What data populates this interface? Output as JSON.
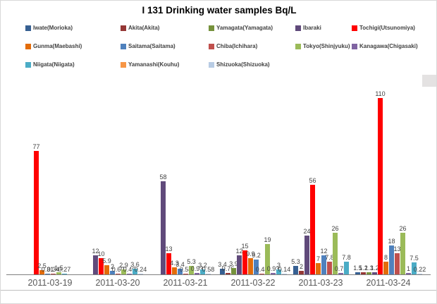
{
  "chart_data": {
    "type": "bar",
    "title": "I 131 Drinking water samples Bq/L",
    "xlabel": "",
    "ylabel": "",
    "ylim": [
      0,
      110
    ],
    "grid": false,
    "legend_position": "top-left, three rows, five columns",
    "value_labels": "shown above each bar",
    "categories": [
      "2011-03-19",
      "2011-03-20",
      "2011-03-21",
      "2011-03-22",
      "2011-03-23",
      "2011-03-24"
    ],
    "series": [
      {
        "name": "Iwate(Morioka)",
        "color": "#376092",
        "values": [
          null,
          null,
          null,
          3.4,
          5.3,
          1.5
        ],
        "labels": [
          null,
          null,
          null,
          "3.4",
          "5.3",
          "1.5"
        ]
      },
      {
        "name": "Akita(Akita)",
        "color": "#953735",
        "values": [
          null,
          null,
          null,
          0.76,
          2,
          1.2
        ],
        "labels": [
          null,
          null,
          null,
          "0.76",
          "2",
          "1.2"
        ]
      },
      {
        "name": "Yamagata(Yamagata)",
        "color": "#76923C",
        "values": [
          null,
          null,
          null,
          3.9,
          null,
          1.3
        ],
        "labels": [
          null,
          null,
          null,
          "3.9",
          null,
          "1.3"
        ]
      },
      {
        "name": "Ibaraki",
        "color": "#604A7B",
        "values": [
          null,
          12,
          58,
          12,
          24,
          1.2
        ],
        "labels": [
          null,
          "12",
          "58",
          "12",
          "24",
          "1.2"
        ]
      },
      {
        "name": "Tochigi(Utsunomiya)",
        "color": "#FF0000",
        "values": [
          77,
          10,
          13,
          15,
          56,
          110
        ],
        "labels": [
          "77",
          "10",
          "13",
          "15",
          "56",
          "110"
        ]
      },
      {
        "name": "Gunma(Maebashi)",
        "color": "#E36C09",
        "values": [
          2.5,
          5.9,
          4.3,
          9.9,
          7,
          8
        ],
        "labels": [
          "2.5",
          "5.9",
          "4.3",
          "9.9",
          "7",
          "8"
        ]
      },
      {
        "name": "Saitama(Saitama)",
        "color": "#4F81BD",
        "values": [
          0.31,
          2,
          3.4,
          9.2,
          12,
          18
        ],
        "labels": [
          "0.31",
          "2",
          "3.4",
          "9.2",
          "12",
          "18"
        ]
      },
      {
        "name": "Chiba(Ichihara)",
        "color": "#C0504D",
        "values": [
          0.34,
          0.6,
          0.58,
          0.48,
          7.8,
          13
        ],
        "labels": [
          "0.34",
          "0.60",
          "0.58",
          "0.48",
          "7.8",
          "13"
        ]
      },
      {
        "name": "Tokyo(Shinjyuku)",
        "color": "#9BBB59",
        "values": [
          1.5,
          2.9,
          5.3,
          19,
          26,
          26
        ],
        "labels": [
          "1.5",
          "2.9",
          "5.3",
          "19",
          "26",
          "26"
        ]
      },
      {
        "name": "Kanagawa(Chigasaki)",
        "color": "#8064A2",
        "values": [
          null,
          0.46,
          0.93,
          0.93,
          0.75,
          1
        ],
        "labels": [
          null,
          "0.46",
          "0.93",
          "0.93",
          "0.75",
          "1"
        ]
      },
      {
        "name": "Niigata(Niigata)",
        "color": "#4BACC6",
        "values": [
          0.27,
          3.6,
          3.2,
          3,
          7.8,
          7.5
        ],
        "labels": [
          "0.27",
          "3.6",
          "3.2",
          "3",
          "7.8",
          "7.5"
        ]
      },
      {
        "name": "Yamanashi(Kouhu)",
        "color": "#F79646",
        "values": [
          null,
          null,
          null,
          null,
          null,
          null
        ],
        "labels": [
          null,
          null,
          null,
          null,
          null,
          null
        ]
      },
      {
        "name": "Shizuoka(Shizuoka)",
        "color": "#B8CCE4",
        "values": [
          null,
          0.24,
          0.58,
          0.14,
          null,
          0.22
        ],
        "labels": [
          null,
          "0.24",
          "0.58",
          "0.14",
          null,
          "0.22"
        ]
      }
    ]
  }
}
